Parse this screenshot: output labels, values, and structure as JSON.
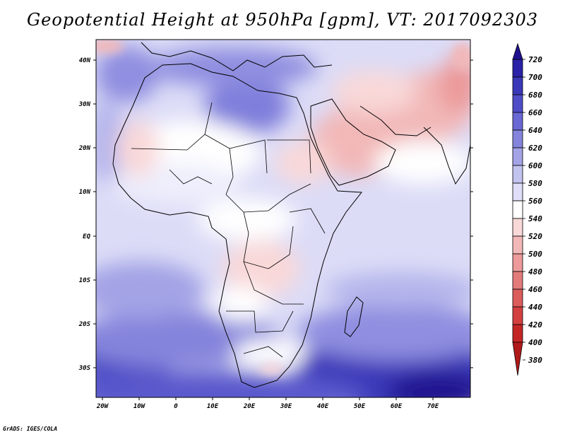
{
  "map": {
    "title": "Geopotential Height at 950hPa [gpm], VT: 2017092303",
    "credit": "GrADS: IGES/COLA",
    "lat_labels": [
      "40N",
      "30N",
      "20N",
      "10N",
      "EQ",
      "10S",
      "20S",
      "30S"
    ],
    "lon_labels": [
      "20W",
      "10W",
      "0",
      "10E",
      "20E",
      "30E",
      "40E",
      "50E",
      "60E",
      "70E"
    ],
    "colorbar": {
      "labels": [
        "720",
        "700",
        "680",
        "660",
        "640",
        "620",
        "600",
        "580",
        "560",
        "540",
        "520",
        "500",
        "480",
        "460",
        "440",
        "420",
        "400",
        "380"
      ],
      "colors": [
        "#201090",
        "#2a22a8",
        "#3a38b8",
        "#4f4dc8",
        "#6a68d4",
        "#8584dc",
        "#a3a3e6",
        "#c3c3f0",
        "#dedef8",
        "#ffffff",
        "#f9d8d8",
        "#f2b8b8",
        "#ec9a9a",
        "#e47b7b",
        "#dc5c5c",
        "#d44040",
        "#c42626",
        "#b01a1a"
      ]
    }
  }
}
